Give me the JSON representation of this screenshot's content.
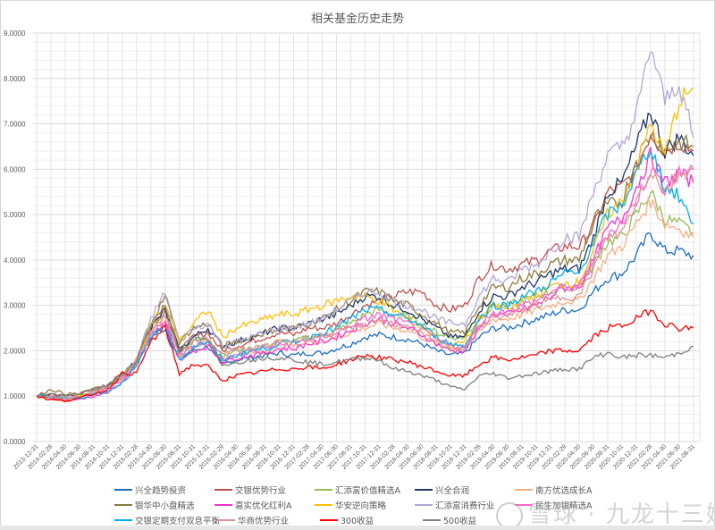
{
  "chart_data": {
    "type": "line",
    "title": "相关基金历史走势",
    "xlabel": "",
    "ylabel": "",
    "ylim": [
      0,
      9
    ],
    "yticks": [
      "0.0000",
      "1.0000",
      "2.0000",
      "3.0000",
      "4.0000",
      "5.0000",
      "6.0000",
      "7.0000",
      "8.0000",
      "9.0000"
    ],
    "grid": true,
    "legend_position": "bottom",
    "x": [
      "2013-12-31",
      "2014-02-28",
      "2014-04-30",
      "2014-06-30",
      "2014-08-31",
      "2014-10-31",
      "2014-12-31",
      "2015-02-28",
      "2015-04-30",
      "2015-06-30",
      "2015-08-31",
      "2015-10-31",
      "2015-12-31",
      "2016-02-29",
      "2016-04-30",
      "2016-06-30",
      "2016-08-31",
      "2016-10-31",
      "2016-12-31",
      "2017-02-28",
      "2017-04-30",
      "2017-06-30",
      "2017-08-31",
      "2017-10-31",
      "2017-12-31",
      "2018-02-28",
      "2018-04-30",
      "2018-06-30",
      "2018-08-31",
      "2018-10-31",
      "2018-12-31",
      "2019-02-28",
      "2019-04-30",
      "2019-06-30",
      "2019-08-31",
      "2019-10-31",
      "2019-12-31",
      "2020-02-29",
      "2020-04-30",
      "2020-06-30",
      "2020-08-31",
      "2020-10-31",
      "2020-12-31",
      "2021-02-28",
      "2021-04-30",
      "2021-06-30",
      "2021-08-31"
    ],
    "series": [
      {
        "name": "兴全趋势投资",
        "color": "#1f6fc0",
        "values": [
          1.0,
          1.0,
          0.95,
          1.0,
          1.1,
          1.2,
          1.4,
          1.7,
          2.3,
          2.5,
          1.8,
          2.0,
          2.1,
          1.7,
          1.8,
          1.85,
          1.9,
          1.95,
          1.9,
          1.95,
          1.95,
          2.05,
          2.15,
          2.3,
          2.35,
          2.3,
          2.25,
          2.15,
          2.0,
          1.9,
          1.95,
          2.3,
          2.5,
          2.5,
          2.6,
          2.7,
          2.8,
          2.9,
          2.9,
          3.3,
          3.6,
          3.7,
          4.1,
          4.6,
          4.2,
          4.2,
          4.1
        ]
      },
      {
        "name": "交银优势行业",
        "color": "#c0504d",
        "values": [
          1.0,
          1.05,
          1.0,
          1.05,
          1.15,
          1.25,
          1.5,
          1.8,
          2.5,
          2.9,
          2.0,
          2.3,
          2.4,
          2.0,
          2.1,
          2.2,
          2.3,
          2.4,
          2.35,
          2.5,
          2.5,
          2.6,
          2.8,
          3.0,
          3.1,
          3.2,
          3.3,
          3.3,
          3.0,
          2.9,
          3.0,
          3.6,
          3.9,
          3.8,
          3.9,
          4.0,
          4.2,
          4.3,
          4.3,
          4.7,
          5.5,
          5.6,
          6.0,
          6.8,
          6.4,
          6.6,
          6.4
        ]
      },
      {
        "name": "汇添富价值精选A",
        "color": "#9bbb59",
        "values": [
          1.0,
          1.0,
          0.95,
          1.0,
          1.1,
          1.2,
          1.45,
          1.8,
          2.5,
          2.8,
          2.0,
          2.2,
          2.3,
          1.9,
          2.0,
          2.05,
          2.1,
          2.2,
          2.2,
          2.3,
          2.35,
          2.45,
          2.6,
          2.8,
          2.9,
          2.8,
          2.75,
          2.6,
          2.4,
          2.3,
          2.3,
          2.7,
          3.0,
          3.0,
          3.1,
          3.2,
          3.3,
          3.4,
          3.4,
          3.9,
          4.4,
          4.5,
          5.0,
          5.5,
          4.9,
          4.8,
          4.6
        ]
      },
      {
        "name": "兴全合润",
        "color": "#1f3864",
        "values": [
          1.0,
          1.0,
          0.95,
          1.0,
          1.1,
          1.2,
          1.45,
          1.8,
          2.5,
          2.9,
          2.0,
          2.3,
          2.5,
          2.1,
          2.2,
          2.3,
          2.4,
          2.5,
          2.5,
          2.6,
          2.7,
          2.8,
          3.0,
          3.2,
          3.2,
          3.0,
          2.9,
          2.7,
          2.5,
          2.3,
          2.3,
          2.9,
          3.2,
          3.2,
          3.4,
          3.5,
          3.7,
          3.8,
          3.8,
          4.5,
          5.5,
          5.7,
          6.5,
          7.3,
          6.4,
          6.7,
          6.3
        ]
      },
      {
        "name": "南方优选成长A",
        "color": "#f4b183",
        "values": [
          1.0,
          1.0,
          0.95,
          1.0,
          1.1,
          1.2,
          1.4,
          1.75,
          2.4,
          2.7,
          1.9,
          2.1,
          2.2,
          1.8,
          1.9,
          1.95,
          2.0,
          2.1,
          2.1,
          2.2,
          2.2,
          2.3,
          2.4,
          2.5,
          2.6,
          2.5,
          2.45,
          2.3,
          2.15,
          2.05,
          2.05,
          2.4,
          2.7,
          2.7,
          2.8,
          2.9,
          3.0,
          3.1,
          3.1,
          3.6,
          4.1,
          4.3,
          4.8,
          5.3,
          4.8,
          4.7,
          4.5
        ]
      },
      {
        "name": "银华中小盘精选",
        "color": "#8c7b3f",
        "values": [
          1.0,
          1.15,
          1.05,
          1.05,
          1.15,
          1.25,
          1.45,
          1.8,
          2.6,
          3.2,
          2.2,
          2.5,
          2.6,
          2.1,
          2.2,
          2.3,
          2.4,
          2.5,
          2.5,
          2.6,
          2.7,
          2.9,
          3.1,
          3.3,
          3.3,
          3.1,
          3.0,
          2.8,
          2.6,
          2.4,
          2.4,
          3.0,
          3.4,
          3.4,
          3.6,
          3.7,
          3.9,
          4.0,
          4.0,
          4.9,
          5.2,
          5.3,
          6.2,
          6.8,
          6.4,
          6.6,
          6.5
        ]
      },
      {
        "name": "嘉实优化红利A",
        "color": "#ff33cc",
        "values": [
          1.0,
          0.95,
          0.9,
          0.95,
          1.0,
          1.1,
          1.3,
          1.7,
          2.3,
          2.6,
          1.8,
          2.0,
          2.1,
          1.75,
          1.85,
          1.9,
          1.95,
          2.05,
          2.05,
          2.15,
          2.2,
          2.3,
          2.45,
          2.6,
          2.7,
          2.6,
          2.5,
          2.35,
          2.15,
          2.0,
          2.0,
          2.5,
          2.8,
          2.8,
          2.9,
          3.0,
          3.2,
          3.4,
          3.4,
          4.0,
          4.7,
          4.9,
          5.6,
          6.3,
          5.7,
          5.9,
          5.7
        ]
      },
      {
        "name": "华安逆向策略",
        "color": "#ffc000",
        "values": [
          1.0,
          0.95,
          0.9,
          1.0,
          1.1,
          1.2,
          1.45,
          1.8,
          2.6,
          3.0,
          2.2,
          2.6,
          2.9,
          2.3,
          2.5,
          2.6,
          2.7,
          2.8,
          2.8,
          2.9,
          3.0,
          3.1,
          3.2,
          3.2,
          3.1,
          2.9,
          2.7,
          2.5,
          2.3,
          2.1,
          2.2,
          2.7,
          3.0,
          2.9,
          3.1,
          3.2,
          3.4,
          3.5,
          3.5,
          4.2,
          5.0,
          5.3,
          6.0,
          7.0,
          6.3,
          7.5,
          7.8
        ]
      },
      {
        "name": "汇添富消费行业",
        "color": "#b4a7d6",
        "values": [
          1.0,
          1.0,
          0.95,
          1.0,
          1.1,
          1.2,
          1.45,
          1.8,
          2.7,
          3.3,
          2.2,
          2.5,
          2.6,
          2.1,
          2.2,
          2.3,
          2.4,
          2.5,
          2.5,
          2.6,
          2.7,
          2.9,
          3.1,
          3.3,
          3.3,
          3.1,
          3.0,
          2.9,
          2.7,
          2.6,
          2.6,
          3.2,
          3.6,
          3.5,
          3.8,
          3.9,
          4.2,
          4.5,
          4.5,
          5.5,
          6.3,
          6.5,
          7.2,
          8.7,
          7.5,
          7.9,
          6.7
        ]
      },
      {
        "name": "民生加银精选A",
        "color": "#ff66cc",
        "values": [
          1.0,
          0.95,
          0.9,
          0.95,
          1.05,
          1.15,
          1.35,
          1.7,
          2.4,
          2.7,
          1.9,
          2.1,
          2.2,
          1.8,
          1.9,
          2.0,
          2.05,
          2.15,
          2.15,
          2.25,
          2.3,
          2.4,
          2.55,
          2.7,
          2.8,
          2.7,
          2.6,
          2.45,
          2.25,
          2.1,
          2.1,
          2.55,
          2.85,
          2.85,
          3.0,
          3.1,
          3.3,
          3.4,
          3.4,
          4.0,
          4.6,
          4.8,
          5.3,
          6.0,
          5.6,
          5.9,
          6.0
        ]
      },
      {
        "name": "交银定期支付双息平衡",
        "color": "#00b0f0",
        "values": [
          1.0,
          1.0,
          0.95,
          0.95,
          1.05,
          1.1,
          1.3,
          1.65,
          2.3,
          2.6,
          1.8,
          2.1,
          2.2,
          1.8,
          1.9,
          2.0,
          2.05,
          2.15,
          2.2,
          2.3,
          2.4,
          2.5,
          2.7,
          2.9,
          2.9,
          2.8,
          2.7,
          2.55,
          2.3,
          2.15,
          2.1,
          2.7,
          3.0,
          3.0,
          3.2,
          3.3,
          3.5,
          3.7,
          3.7,
          4.4,
          5.0,
          5.2,
          5.9,
          6.5,
          5.6,
          5.4,
          4.8
        ]
      },
      {
        "name": "华商优势行业",
        "color": "#d99594",
        "values": [
          1.0,
          1.0,
          0.95,
          1.0,
          1.1,
          1.2,
          1.4,
          1.75,
          2.4,
          2.8,
          1.9,
          2.2,
          2.3,
          1.9,
          2.0,
          2.05,
          2.1,
          2.2,
          2.2,
          2.3,
          2.3,
          2.4,
          2.5,
          2.6,
          2.7,
          2.6,
          2.5,
          2.35,
          2.2,
          2.05,
          2.05,
          2.5,
          2.75,
          2.75,
          2.9,
          3.0,
          3.1,
          3.2,
          3.2,
          3.8,
          4.5,
          4.6,
          5.3,
          6.0,
          5.5,
          5.9,
          6.0
        ]
      },
      {
        "name": "300收益",
        "color": "#ff0000",
        "values": [
          1.0,
          0.92,
          0.9,
          0.95,
          1.05,
          1.15,
          1.5,
          1.5,
          2.2,
          2.5,
          1.5,
          1.7,
          1.65,
          1.35,
          1.45,
          1.5,
          1.55,
          1.6,
          1.6,
          1.65,
          1.6,
          1.7,
          1.8,
          1.9,
          1.85,
          1.8,
          1.75,
          1.65,
          1.55,
          1.45,
          1.45,
          1.7,
          1.85,
          1.8,
          1.85,
          1.9,
          2.0,
          2.0,
          2.0,
          2.3,
          2.5,
          2.55,
          2.7,
          2.9,
          2.6,
          2.5,
          2.5
        ]
      },
      {
        "name": "500收益",
        "color": "#7f7f7f",
        "values": [
          1.0,
          1.05,
          1.0,
          1.05,
          1.15,
          1.25,
          1.45,
          1.8,
          2.6,
          3.0,
          2.0,
          2.3,
          2.2,
          1.7,
          1.75,
          1.8,
          1.85,
          1.85,
          1.8,
          1.75,
          1.7,
          1.75,
          1.8,
          1.85,
          1.8,
          1.6,
          1.55,
          1.45,
          1.35,
          1.2,
          1.15,
          1.45,
          1.5,
          1.4,
          1.45,
          1.5,
          1.55,
          1.6,
          1.6,
          1.85,
          1.95,
          1.85,
          1.9,
          1.9,
          1.85,
          1.95,
          2.1
        ]
      }
    ]
  },
  "watermark": "雪球 · 九龙十三姨"
}
